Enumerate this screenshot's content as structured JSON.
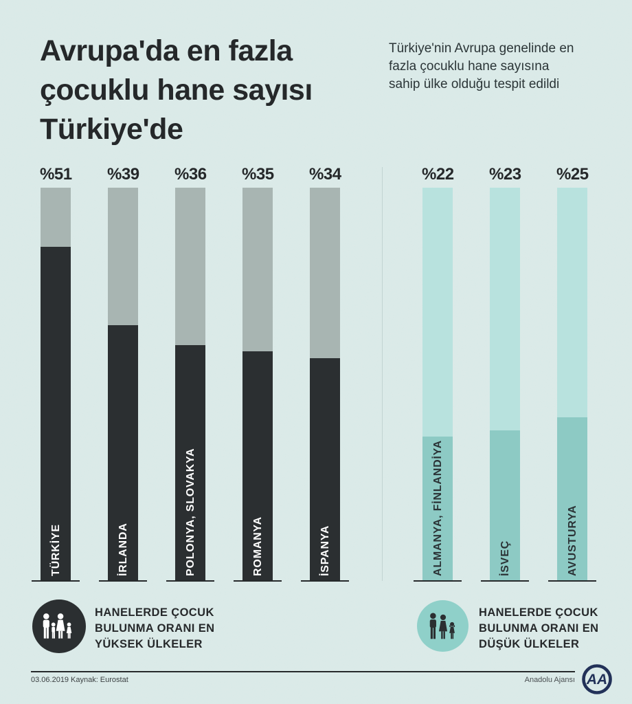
{
  "header": {
    "title": "Avrupa'da en fazla çocuklu hane sayısı Türkiye'de",
    "subtitle": "Türkiye'nin Avrupa genelinde en fazla çocuklu hane sayısına sahip ülke olduğu tespit edildi"
  },
  "chart_data": {
    "type": "bar",
    "orientation": "vertical",
    "value_prefix": "%",
    "axis_max": 60,
    "grid": false,
    "groups": [
      {
        "id": "highest",
        "categories": [
          "TÜRKİYE",
          "İRLANDA",
          "POLONYA, SLOVAKYA",
          "ROMANYA",
          "İSPANYA"
        ],
        "values": [
          51,
          39,
          36,
          35,
          34
        ],
        "value_labels": [
          "%51",
          "%39",
          "%36",
          "%35",
          "%34"
        ],
        "bar_color": "#2b2f31",
        "track_color": "#a8b5b2",
        "category_label_color": "#ffffff"
      },
      {
        "id": "lowest",
        "categories": [
          "ALMANYA, FİNLANDİYA",
          "İSVEÇ",
          "AVUSTURYA"
        ],
        "values": [
          22,
          23,
          25
        ],
        "value_labels": [
          "%22",
          "%23",
          "%25"
        ],
        "bar_color": "#8dcac4",
        "track_color": "#b8e2de",
        "category_label_color": "#2b3336"
      }
    ]
  },
  "legend": {
    "highest": {
      "icon": "family-four-icon",
      "circle_color": "#2b2f31",
      "icon_color": "#ffffff",
      "text": "HANELERDE ÇOCUK BULUNMA ORANI EN YÜKSEK ÜLKELER"
    },
    "lowest": {
      "icon": "family-three-icon",
      "circle_color": "#8fd0c9",
      "icon_color": "#2b2f31",
      "text": "HANELERDE ÇOCUK BULUNMA ORANI EN DÜŞÜK ÜLKELER"
    }
  },
  "footer": {
    "date": "03.06.2019",
    "source": "Kaynak: Eurostat",
    "credit": "Anadolu Ajansı",
    "logo_text": "AA"
  },
  "colors": {
    "background": "#dcebe9",
    "text_dark": "#25282a",
    "divider": "#c2d3d1",
    "logo_navy": "#223158"
  }
}
